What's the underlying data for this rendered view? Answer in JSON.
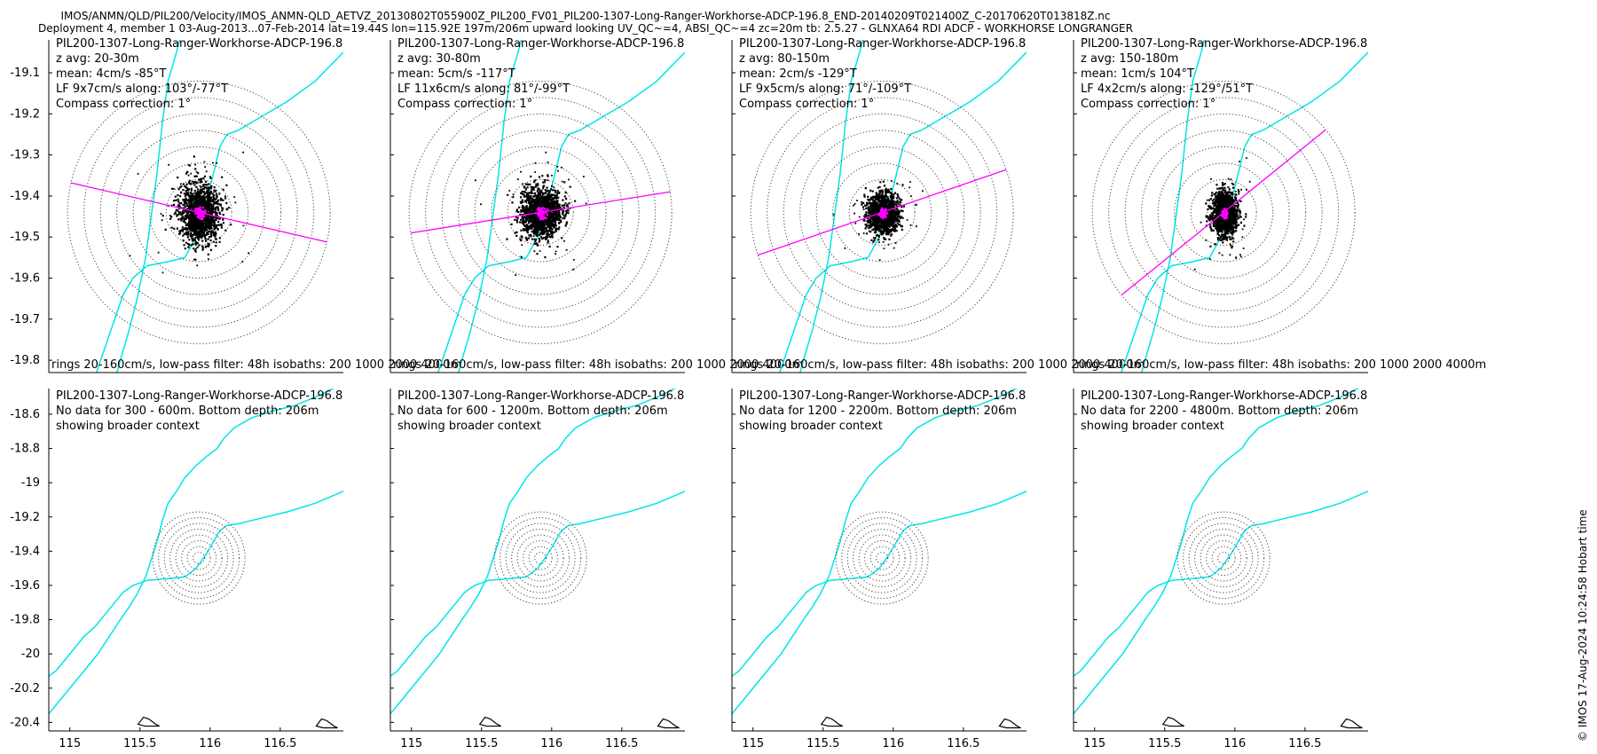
{
  "header": {
    "line1": "IMOS/ANMN/QLD/PIL200/Velocity/IMOS_ANMN-QLD_AETVZ_20130802T055900Z_PIL200_FV01_PIL200-1307-Long-Ranger-Workhorse-ADCP-196.8_END-20140209T021400Z_C-20170620T013818Z.nc",
    "line2": "Deployment 4, member 1 03-Aug-2013...07-Feb-2014 lat=19.44S lon=115.92E 197m/206m upward looking UV_QC~=4, ABSI_QC~=4 zc=20m tb: 2.5.27 - GLNXA64 RDI ADCP - WORKHORSE LONGRANGER"
  },
  "side_label": "© IMOS 17-Aug-2024 10:24:58 Hobart time",
  "colors": {
    "scatter": "#000000",
    "lowpass": "#ff00ff",
    "isobath": "#00e5e5",
    "rings": "#444444"
  },
  "chart_data": {
    "type": "scatter",
    "footer": "rings 20-160cm/s, low-pass filter: 48h isobaths: 200 1000 2000 4000m",
    "top_row": {
      "ylim": [
        -19.83,
        -19.02
      ],
      "yticks": [
        -19.1,
        -19.2,
        -19.3,
        -19.4,
        -19.5,
        -19.6,
        -19.7,
        -19.8
      ],
      "ytick_labels": [
        "-19.1",
        "-19.2",
        "-19.3",
        "-19.4",
        "-19.5",
        "-19.6",
        "-19.7",
        "-19.8"
      ],
      "xlim": [
        114.85,
        116.95
      ]
    },
    "bottom_row": {
      "ylim": [
        -20.45,
        -18.45
      ],
      "yticks": [
        -18.6,
        -18.8,
        -19.0,
        -19.2,
        -19.4,
        -19.6,
        -19.8,
        -20.0,
        -20.2,
        -20.4
      ],
      "ytick_labels": [
        "-18.6",
        "-18.8",
        "-19",
        "-19.2",
        "-19.4",
        "-19.6",
        "-19.8",
        "-20",
        "-20.2",
        "-20.4"
      ],
      "xlim": [
        114.85,
        116.95
      ],
      "xticks": [
        115,
        115.5,
        116,
        116.5
      ],
      "xtick_labels": [
        "115",
        "115.5",
        "116",
        "116.5"
      ]
    },
    "mooring": {
      "lon": 115.92,
      "lat": -19.44
    },
    "rings_cm_s": [
      20,
      40,
      60,
      80,
      100,
      120,
      140,
      160
    ],
    "panels_top": [
      {
        "title": "PIL200-1307-Long-Ranger-Workhorse-ADCP-196.8",
        "zavg": "z avg: 20-30m",
        "mean": "mean: 4cm/s -85°T",
        "lf": "LF 9x7cm/s along: 103°/-77°T",
        "compass": "Compass correction: 1°",
        "cloud_rx": 0.28,
        "cloud_ry": 0.075,
        "lf_along_deg": 103
      },
      {
        "title": "PIL200-1307-Long-Ranger-Workhorse-ADCP-196.8",
        "zavg": "z avg: 30-80m",
        "mean": "mean: 5cm/s -117°T",
        "lf": "LF 11x6cm/s along: 81°/-99°T",
        "compass": "Compass correction: 1°",
        "cloud_rx": 0.29,
        "cloud_ry": 0.065,
        "lf_along_deg": 81
      },
      {
        "title": "PIL200-1307-Long-Ranger-Workhorse-ADCP-196.8",
        "zavg": "z avg: 80-150m",
        "mean": "mean: 2cm/s -129°T",
        "lf": "LF 9x5cm/s along: 71°/-109°T",
        "compass": "Compass correction: 1°",
        "cloud_rx": 0.22,
        "cloud_ry": 0.05,
        "lf_along_deg": 71
      },
      {
        "title": "PIL200-1307-Long-Ranger-Workhorse-ADCP-196.8",
        "zavg": "z avg: 150-180m",
        "mean": "mean: 1cm/s 104°T",
        "lf": "LF 4x2cm/s along: -129°/51°T",
        "compass": "Compass correction: 1°",
        "cloud_rx": 0.17,
        "cloud_ry": 0.055,
        "lf_along_deg": 51
      }
    ],
    "panels_bottom": [
      {
        "title": "PIL200-1307-Long-Ranger-Workhorse-ADCP-196.8",
        "nodata": "No data for 300 - 600m. Bottom depth: 206m",
        "context": "showing broader context"
      },
      {
        "title": "PIL200-1307-Long-Ranger-Workhorse-ADCP-196.8",
        "nodata": "No data for 600 - 1200m. Bottom depth: 206m",
        "context": "showing broader context"
      },
      {
        "title": "PIL200-1307-Long-Ranger-Workhorse-ADCP-196.8",
        "nodata": "No data for 1200 - 2200m. Bottom depth: 206m",
        "context": "showing broader context"
      },
      {
        "title": "PIL200-1307-Long-Ranger-Workhorse-ADCP-196.8",
        "nodata": "No data for 2200 - 4800m. Bottom depth: 206m",
        "context": "showing broader context"
      }
    ],
    "isobaths": [
      {
        "name": "inner",
        "points": [
          [
            114.85,
            -20.13
          ],
          [
            114.9,
            -20.1
          ],
          [
            114.98,
            -20.02
          ],
          [
            115.05,
            -19.95
          ],
          [
            115.1,
            -19.9
          ],
          [
            115.18,
            -19.84
          ],
          [
            115.25,
            -19.77
          ],
          [
            115.32,
            -19.7
          ],
          [
            115.38,
            -19.64
          ],
          [
            115.45,
            -19.6
          ],
          [
            115.55,
            -19.57
          ],
          [
            115.7,
            -19.56
          ],
          [
            115.82,
            -19.55
          ],
          [
            115.9,
            -19.5
          ],
          [
            115.97,
            -19.42
          ],
          [
            116.02,
            -19.35
          ],
          [
            116.07,
            -19.28
          ],
          [
            116.12,
            -19.25
          ],
          [
            116.2,
            -19.24
          ],
          [
            116.35,
            -19.21
          ],
          [
            116.55,
            -19.17
          ],
          [
            116.75,
            -19.12
          ],
          [
            116.95,
            -19.05
          ]
        ]
      },
      {
        "name": "outer",
        "points": [
          [
            114.85,
            -20.35
          ],
          [
            114.9,
            -20.3
          ],
          [
            114.98,
            -20.22
          ],
          [
            115.05,
            -20.15
          ],
          [
            115.12,
            -20.08
          ],
          [
            115.2,
            -20.0
          ],
          [
            115.28,
            -19.9
          ],
          [
            115.36,
            -19.8
          ],
          [
            115.42,
            -19.73
          ],
          [
            115.48,
            -19.65
          ],
          [
            115.54,
            -19.55
          ],
          [
            115.58,
            -19.45
          ],
          [
            115.62,
            -19.35
          ],
          [
            115.66,
            -19.22
          ],
          [
            115.7,
            -19.12
          ],
          [
            115.76,
            -19.05
          ],
          [
            115.82,
            -18.97
          ],
          [
            115.9,
            -18.9
          ],
          [
            115.97,
            -18.85
          ],
          [
            116.05,
            -18.8
          ],
          [
            116.1,
            -18.74
          ],
          [
            116.17,
            -18.68
          ],
          [
            116.3,
            -18.62
          ],
          [
            116.45,
            -18.58
          ],
          [
            116.6,
            -18.55
          ],
          [
            116.75,
            -18.5
          ],
          [
            116.95,
            -18.42
          ]
        ]
      }
    ],
    "islands": [
      {
        "lon": 115.55,
        "lat": -20.37
      },
      {
        "lon": 116.82,
        "lat": -20.38
      }
    ]
  }
}
